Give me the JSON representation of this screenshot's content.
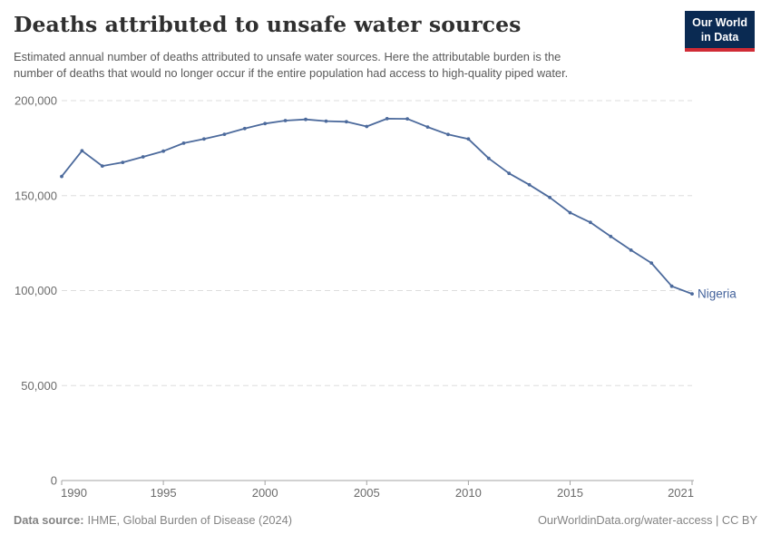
{
  "header": {
    "title": "Deaths attributed to unsafe water sources",
    "subtitle_line1": "Estimated annual number of deaths attributed to unsafe water sources. Here the attributable burden is the",
    "subtitle_line2": "number of deaths that would no longer occur if the entire population had access to high-quality piped water.",
    "logo_line1": "Our World",
    "logo_line2": "in Data"
  },
  "chart_data": {
    "type": "line",
    "title": "Deaths attributed to unsafe water sources",
    "xlabel": "",
    "ylabel": "",
    "x": [
      1990,
      1991,
      1992,
      1993,
      1994,
      1995,
      1996,
      1997,
      1998,
      1999,
      2000,
      2001,
      2002,
      2003,
      2004,
      2005,
      2006,
      2007,
      2008,
      2009,
      2010,
      2011,
      2012,
      2013,
      2014,
      2015,
      2016,
      2017,
      2018,
      2019,
      2020,
      2021
    ],
    "series": [
      {
        "name": "Nigeria",
        "values": [
          160100,
          173600,
          165600,
          167500,
          170400,
          173400,
          177600,
          179800,
          182300,
          185300,
          187900,
          189500,
          190100,
          189200,
          188900,
          186400,
          190500,
          190400,
          186100,
          182200,
          179800,
          169600,
          161700,
          155700,
          149000,
          141000,
          135900,
          128500,
          121300,
          114500,
          102300,
          98300
        ]
      }
    ],
    "xlim": [
      1990,
      2021
    ],
    "ylim": [
      0,
      200000
    ],
    "xticks": [
      1990,
      1995,
      2000,
      2005,
      2010,
      2015,
      2021
    ],
    "yticks": [
      0,
      50000,
      100000,
      150000,
      200000
    ],
    "grid": "horizontal-dashed",
    "legend_position": "end-of-line"
  },
  "footer": {
    "source_label": "Data source:",
    "source_value": "IHME, Global Burden of Disease (2024)",
    "credit": "OurWorldinData.org/water-access | CC BY"
  },
  "colors": {
    "line": "#4c6a9c",
    "series_label": "#44639c",
    "grid": "#dddddd",
    "axis": "#a3a3a3",
    "tick_text": "#6b6b6b",
    "logo_bg": "#0a2a52",
    "logo_accent": "#d02b35"
  }
}
